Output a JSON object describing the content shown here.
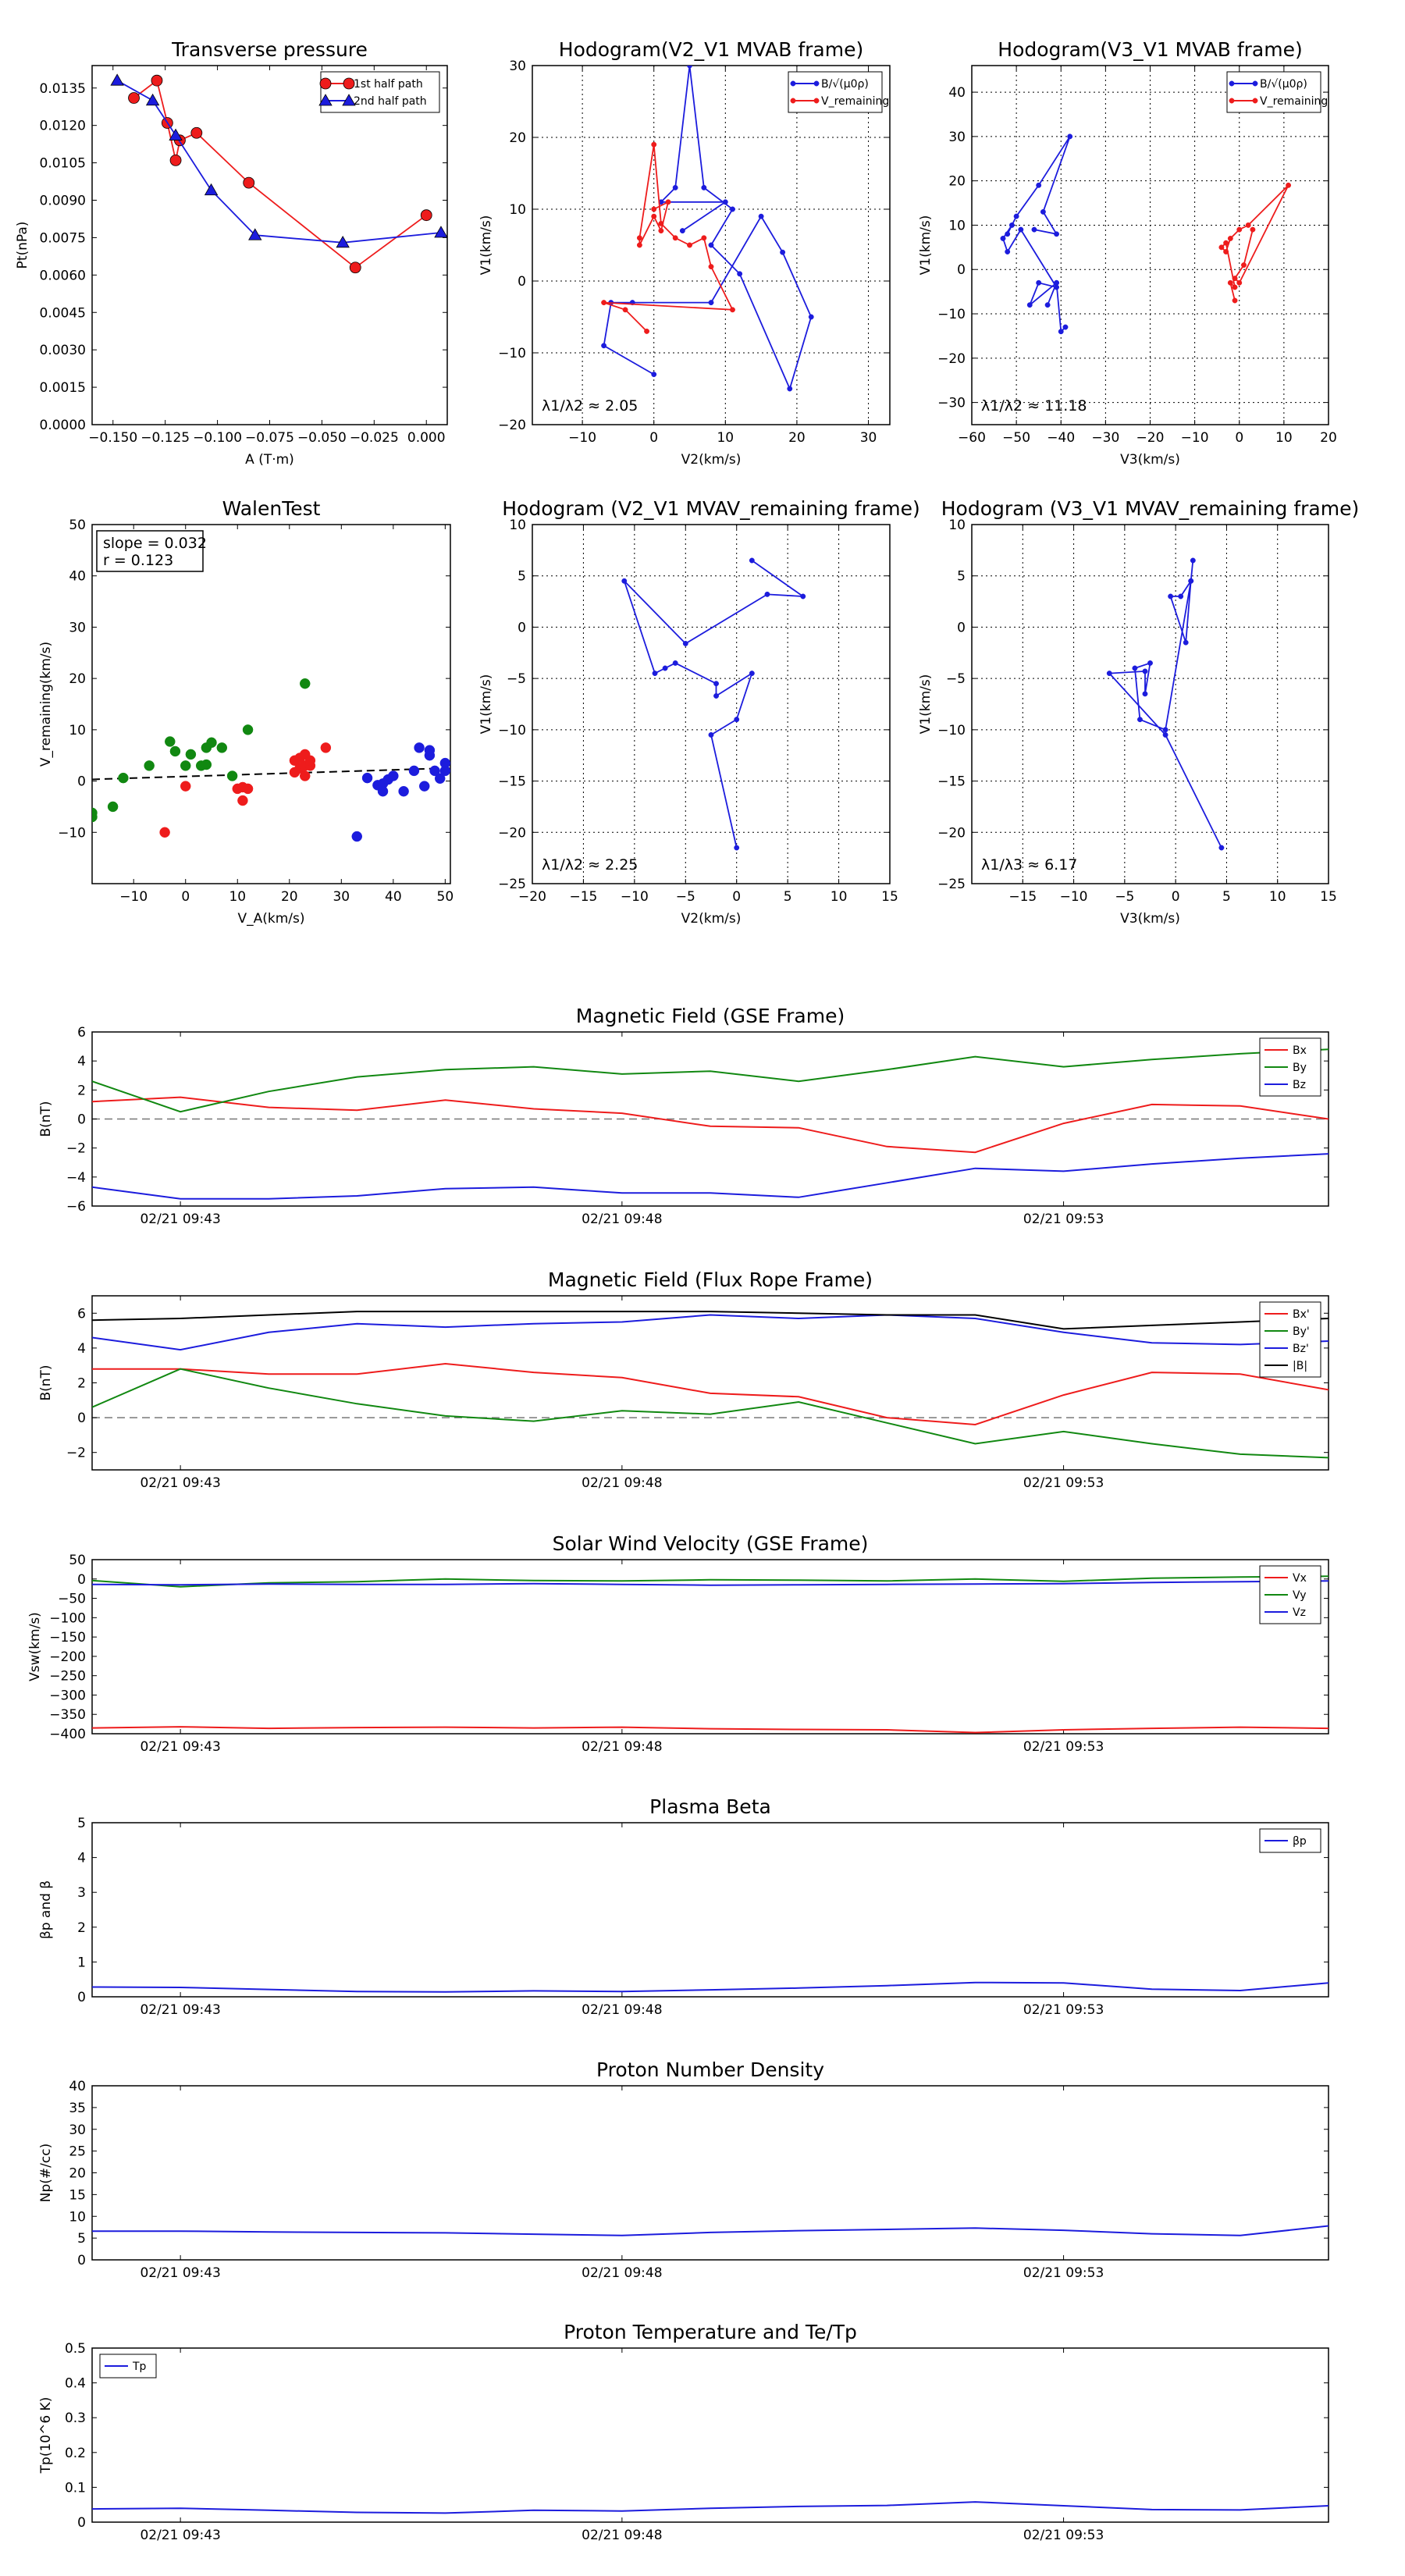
{
  "chart_data": [
    {
      "id": "tp",
      "type": "line",
      "title": "Transverse pressure",
      "xlabel": "A (T·m)",
      "ylabel": "Pt(nPa)",
      "xlim": [
        -0.16,
        0.01
      ],
      "ylim": [
        0,
        0.0144
      ],
      "grid": false,
      "legend": "top-right",
      "xticks": [
        -0.15,
        -0.125,
        -0.1,
        -0.075,
        -0.05,
        -0.025,
        0.0
      ],
      "xtick_labels": [
        "−0.150",
        "−0.125",
        "−0.100",
        "−0.075",
        "−0.050",
        "−0.025",
        "0.000"
      ],
      "yticks": [
        0.0,
        0.0015,
        0.003,
        0.0045,
        0.006,
        0.0075,
        0.009,
        0.0105,
        0.012,
        0.0135
      ],
      "ytick_labels": [
        "0.0000",
        "0.0015",
        "0.0030",
        "0.0045",
        "0.0060",
        "0.0075",
        "0.0090",
        "0.0105",
        "0.0120",
        "0.0135"
      ],
      "series": [
        {
          "name": "1st half path",
          "color": "#ee1c1c",
          "marker": "circle",
          "x": [
            0.0,
            -0.034,
            -0.085,
            -0.11,
            -0.118,
            -0.12,
            -0.124,
            -0.129,
            -0.14
          ],
          "y": [
            0.0084,
            0.0063,
            0.0097,
            0.0117,
            0.0114,
            0.0106,
            0.0121,
            0.0138,
            0.0131
          ]
        },
        {
          "name": "2nd half path",
          "color": "#1c1cdd",
          "marker": "triangle",
          "x": [
            -0.148,
            -0.131,
            -0.12,
            -0.103,
            -0.082,
            -0.04,
            0.007
          ],
          "y": [
            0.0138,
            0.013,
            0.0116,
            0.0094,
            0.0076,
            0.0073,
            0.0077
          ]
        }
      ]
    },
    {
      "id": "h1",
      "type": "line",
      "title": "Hodogram(V2_V1 MVAB frame)",
      "xlabel": "V2(km/s)",
      "ylabel": "V1(km/s)",
      "xlim": [
        -17,
        33
      ],
      "ylim": [
        -20,
        30
      ],
      "grid": true,
      "legend": "top-right",
      "xticks": [
        -10,
        0,
        10,
        20,
        30
      ],
      "yticks": [
        -20,
        -10,
        0,
        10,
        20,
        30
      ],
      "annotation": "λ1/λ2 ≈ 2.05",
      "series": [
        {
          "name": "B/√(μ0ρ)",
          "color": "#1c1cdd",
          "x": [
            0,
            -7,
            -6,
            -3,
            8,
            15,
            18,
            22,
            19,
            12,
            8,
            11,
            7,
            5,
            3,
            1,
            10,
            4
          ],
          "y": [
            -13,
            -9,
            -3,
            -3,
            -3,
            9,
            4,
            -5,
            -15,
            1,
            5,
            10,
            13,
            30,
            13,
            11,
            11,
            7
          ]
        },
        {
          "name": "V_remaining",
          "color": "#ee1c1c",
          "x": [
            -1,
            -4,
            -7,
            11,
            8,
            7,
            5,
            3,
            1,
            0,
            -2,
            -2,
            0,
            1,
            2,
            0
          ],
          "y": [
            -7,
            -4,
            -3,
            -4,
            2,
            6,
            5,
            6,
            8,
            19,
            6,
            5,
            9,
            7,
            11,
            10
          ]
        }
      ]
    },
    {
      "id": "h2",
      "type": "line",
      "title": "Hodogram(V3_V1 MVAB frame)",
      "xlabel": "V3(km/s)",
      "ylabel": "V1(km/s)",
      "xlim": [
        -60,
        20
      ],
      "ylim": [
        -35,
        46
      ],
      "grid": true,
      "legend": "top-right",
      "xticks": [
        -60,
        -50,
        -40,
        -30,
        -20,
        -10,
        0,
        10,
        20
      ],
      "yticks": [
        -30,
        -20,
        -10,
        0,
        10,
        20,
        30,
        40
      ],
      "annotation": "λ1/λ2 ≈ 11.18",
      "series": [
        {
          "name": "B/√(μ0ρ)",
          "color": "#1c1cdd",
          "x": [
            -39,
            -40,
            -41,
            -43,
            -41,
            -47,
            -45,
            -41,
            -49,
            -52,
            -53,
            -51,
            -52,
            -50,
            -45,
            -38,
            -44,
            -41,
            -46
          ],
          "y": [
            -13,
            -14,
            -3,
            -8,
            -3,
            -8,
            -3,
            -4,
            9,
            4,
            7,
            10,
            8,
            12,
            19,
            30,
            13,
            8,
            9
          ]
        },
        {
          "name": "V_remaining",
          "color": "#ee1c1c",
          "x": [
            -1,
            -2,
            -1,
            -3,
            -4,
            -3,
            -2,
            0,
            2,
            11,
            0,
            -1,
            1,
            3
          ],
          "y": [
            -7,
            -3,
            -4,
            6,
            5,
            4,
            7,
            9,
            10,
            19,
            -3,
            -2,
            1,
            9
          ]
        }
      ]
    },
    {
      "id": "walen",
      "type": "scatter",
      "title": "WalenTest",
      "xlabel": "V_A(km/s)",
      "ylabel": "V_remaining(km/s)",
      "xlim": [
        -18,
        51
      ],
      "ylim": [
        -20,
        50
      ],
      "grid": false,
      "xticks": [
        -10,
        0,
        10,
        20,
        30,
        40,
        50
      ],
      "yticks": [
        -10,
        0,
        10,
        20,
        30,
        40,
        50
      ],
      "annotation": [
        "slope = 0.032",
        "r = 0.123"
      ],
      "fit_line": {
        "slope": 0.032,
        "intercept": 0.9,
        "x": [
          -18,
          51
        ]
      },
      "series": [
        {
          "name": "green",
          "color": "#118811",
          "x": [
            -18,
            -18,
            -14,
            -12,
            -7,
            -3,
            -2,
            0,
            1,
            3,
            4,
            4,
            5,
            7,
            9,
            12,
            23
          ],
          "y": [
            -6.2,
            -7,
            -5,
            0.6,
            3,
            7.7,
            5.8,
            3,
            5.2,
            3,
            6.5,
            3.2,
            7.5,
            6.5,
            1,
            10,
            19
          ]
        },
        {
          "name": "red",
          "color": "#ee1c1c",
          "x": [
            -4,
            0,
            10,
            11,
            11,
            12,
            21,
            21,
            22,
            22,
            23,
            23,
            23,
            24,
            24,
            27
          ],
          "y": [
            -10,
            -1,
            -1.5,
            -3.8,
            -1.2,
            -1.5,
            1.7,
            4,
            2.5,
            4.5,
            1,
            3,
            5.2,
            3,
            4,
            6.5
          ]
        },
        {
          "name": "blue",
          "color": "#1c1cdd",
          "x": [
            33,
            35,
            37,
            38,
            38,
            39,
            40,
            42,
            44,
            45,
            46,
            47,
            47,
            48,
            49,
            50,
            50
          ],
          "y": [
            -10.8,
            0.6,
            -0.8,
            -0.5,
            -2,
            0.3,
            1,
            -2,
            2,
            6.5,
            -1,
            5,
            6,
            2,
            0.5,
            3.5,
            2
          ]
        }
      ]
    },
    {
      "id": "h3",
      "type": "line",
      "title": "Hodogram (V2_V1 MVAV_remaining frame)",
      "xlabel": "V2(km/s)",
      "ylabel": "V1(km/s)",
      "xlim": [
        -20,
        15
      ],
      "ylim": [
        -25,
        10
      ],
      "grid": true,
      "xticks": [
        -20,
        -15,
        -10,
        -5,
        0,
        5,
        10,
        15
      ],
      "yticks": [
        -25,
        -20,
        -15,
        -10,
        -5,
        0,
        5,
        10
      ],
      "annotation": "λ1/λ2 ≈ 2.25",
      "series": [
        {
          "name": "",
          "color": "#1c1cdd",
          "x": [
            1.5,
            6.5,
            3,
            -5,
            -11,
            -8,
            -7,
            -6,
            -2,
            -2,
            1.5,
            0,
            -2.5,
            0
          ],
          "y": [
            6.5,
            3,
            3.2,
            -1.6,
            4.5,
            -4.5,
            -4,
            -3.5,
            -5.5,
            -6.7,
            -4.5,
            -9,
            -10.5,
            -21.5
          ]
        }
      ]
    },
    {
      "id": "h4",
      "type": "line",
      "title": "Hodogram (V3_V1 MVAV_remaining frame)",
      "xlabel": "V3(km/s)",
      "ylabel": "V1(km/s)",
      "xlim": [
        -20,
        15
      ],
      "ylim": [
        -25,
        10
      ],
      "grid": true,
      "xticks": [
        -15,
        -10,
        -5,
        0,
        5,
        10,
        15
      ],
      "yticks": [
        -25,
        -20,
        -15,
        -10,
        -5,
        0,
        5,
        10
      ],
      "annotation": "λ1/λ3 ≈ 6.17",
      "series": [
        {
          "name": "",
          "color": "#1c1cdd",
          "x": [
            1.7,
            1.5,
            0.5,
            -0.5,
            1,
            1.5,
            -1,
            -3.5,
            -4,
            -2.5,
            -3,
            -3,
            -6.5,
            -1,
            4.5
          ],
          "y": [
            6.5,
            4.5,
            3,
            3,
            -1.5,
            4.5,
            -10,
            -9,
            -4,
            -3.5,
            -6.5,
            -4.3,
            -4.5,
            -10.5,
            -21.5
          ]
        }
      ]
    },
    {
      "id": "mag",
      "type": "line",
      "title": "Magnetic Field (GSE Frame)",
      "ylabel": "B(nT)",
      "ylim": [
        -6,
        6
      ],
      "yticks": [
        -6,
        -4,
        -2,
        0,
        2,
        4,
        6
      ],
      "zero_line": true,
      "legend": "top-right",
      "x": [
        0,
        1,
        2,
        3,
        4,
        5,
        6,
        7,
        8,
        9,
        10,
        11,
        12,
        13,
        14
      ],
      "xticks": [
        1,
        6,
        11
      ],
      "xtick_labels": [
        "02/21 09:43",
        "02/21 09:48",
        "02/21 09:53"
      ],
      "series": [
        {
          "name": "Bx",
          "color": "#ee1c1c",
          "values": [
            1.2,
            1.5,
            0.8,
            0.6,
            1.3,
            0.7,
            0.4,
            -0.5,
            -0.6,
            -1.9,
            -2.3,
            -0.3,
            1.0,
            0.9,
            0.0
          ]
        },
        {
          "name": "By",
          "color": "#118811",
          "values": [
            2.6,
            0.5,
            1.9,
            2.9,
            3.4,
            3.6,
            3.1,
            3.3,
            2.6,
            3.4,
            4.3,
            3.6,
            4.1,
            4.5,
            4.8
          ]
        },
        {
          "name": "Bz",
          "color": "#1c1cdd",
          "values": [
            -4.7,
            -5.5,
            -5.5,
            -5.3,
            -4.8,
            -4.7,
            -5.1,
            -5.1,
            -5.4,
            -4.4,
            -3.4,
            -3.6,
            -3.1,
            -2.7,
            -2.4
          ]
        }
      ]
    },
    {
      "id": "flux",
      "type": "line",
      "title": "Magnetic Field (Flux Rope Frame)",
      "ylabel": "B(nT)",
      "ylim": [
        -3,
        7
      ],
      "yticks": [
        -2,
        0,
        2,
        4,
        6
      ],
      "zero_line": true,
      "legend": "top-right",
      "x": [
        0,
        1,
        2,
        3,
        4,
        5,
        6,
        7,
        8,
        9,
        10,
        11,
        12,
        13,
        14
      ],
      "xticks": [
        1,
        6,
        11
      ],
      "xtick_labels": [
        "02/21 09:43",
        "02/21 09:48",
        "02/21 09:53"
      ],
      "series": [
        {
          "name": "Bx'",
          "color": "#ee1c1c",
          "values": [
            2.8,
            2.8,
            2.5,
            2.5,
            3.1,
            2.6,
            2.3,
            1.4,
            1.2,
            0.0,
            -0.4,
            1.3,
            2.6,
            2.5,
            1.6
          ]
        },
        {
          "name": "By'",
          "color": "#118811",
          "values": [
            0.6,
            2.8,
            1.7,
            0.8,
            0.1,
            -0.2,
            0.4,
            0.2,
            0.9,
            -0.3,
            -1.5,
            -0.8,
            -1.5,
            -2.1,
            -2.3
          ]
        },
        {
          "name": "Bz'",
          "color": "#1c1cdd",
          "values": [
            4.6,
            3.9,
            4.9,
            5.4,
            5.2,
            5.4,
            5.5,
            5.9,
            5.7,
            5.9,
            5.7,
            4.9,
            4.3,
            4.2,
            4.4
          ]
        },
        {
          "name": "|B|",
          "color": "#000000",
          "values": [
            5.6,
            5.7,
            5.9,
            6.1,
            6.1,
            6.1,
            6.1,
            6.1,
            6.0,
            5.9,
            5.9,
            5.1,
            5.3,
            5.5,
            5.7
          ]
        }
      ]
    },
    {
      "id": "vsw",
      "type": "line",
      "title": "Solar Wind Velocity (GSE Frame)",
      "ylabel": "Vsw(km/s)",
      "ylim": [
        -400,
        50
      ],
      "yticks": [
        -400,
        -350,
        -300,
        -250,
        -200,
        -150,
        -100,
        -50,
        0,
        50
      ],
      "legend": "top-right",
      "x": [
        0,
        1,
        2,
        3,
        4,
        5,
        6,
        7,
        8,
        9,
        10,
        11,
        12,
        13,
        14
      ],
      "xticks": [
        1,
        6,
        11
      ],
      "xtick_labels": [
        "02/21 09:43",
        "02/21 09:48",
        "02/21 09:53"
      ],
      "series": [
        {
          "name": "Vx",
          "color": "#ee1c1c",
          "values": [
            -385,
            -382,
            -386,
            -384,
            -383,
            -385,
            -383,
            -387,
            -389,
            -390,
            -397,
            -390,
            -386,
            -383,
            -386
          ]
        },
        {
          "name": "Vy",
          "color": "#118811",
          "values": [
            -4,
            -20,
            -10,
            -7,
            0,
            -4,
            -5,
            -2,
            -3,
            -5,
            0,
            -6,
            2,
            5,
            7
          ]
        },
        {
          "name": "Vz",
          "color": "#1c1cdd",
          "values": [
            -14,
            -15,
            -13,
            -14,
            -14,
            -12,
            -14,
            -16,
            -15,
            -14,
            -13,
            -12,
            -9,
            -7,
            -5
          ]
        }
      ]
    },
    {
      "id": "beta",
      "type": "line",
      "title": "Plasma Beta",
      "ylabel": "βp and β",
      "ylim": [
        0,
        5
      ],
      "yticks": [
        0,
        1,
        2,
        3,
        4,
        5
      ],
      "legend": "top-right",
      "x": [
        0,
        1,
        2,
        3,
        4,
        5,
        6,
        7,
        8,
        9,
        10,
        11,
        12,
        13,
        14
      ],
      "xticks": [
        1,
        6,
        11
      ],
      "xtick_labels": [
        "02/21 09:43",
        "02/21 09:48",
        "02/21 09:53"
      ],
      "series": [
        {
          "name": "βp",
          "color": "#1c1cdd",
          "values": [
            0.28,
            0.27,
            0.21,
            0.15,
            0.14,
            0.17,
            0.15,
            0.2,
            0.25,
            0.32,
            0.41,
            0.4,
            0.22,
            0.18,
            0.4
          ]
        }
      ]
    },
    {
      "id": "np",
      "type": "line",
      "title": "Proton Number Density",
      "ylabel": "Np(#/cc)",
      "ylim": [
        0,
        40
      ],
      "yticks": [
        0,
        5,
        10,
        15,
        20,
        25,
        30,
        35,
        40
      ],
      "x": [
        0,
        1,
        2,
        3,
        4,
        5,
        6,
        7,
        8,
        9,
        10,
        11,
        12,
        13,
        14
      ],
      "xticks": [
        1,
        6,
        11
      ],
      "xtick_labels": [
        "02/21 09:43",
        "02/21 09:48",
        "02/21 09:53"
      ],
      "series": [
        {
          "name": "",
          "color": "#1c1cdd",
          "values": [
            6.6,
            6.6,
            6.4,
            6.3,
            6.2,
            5.9,
            5.6,
            6.3,
            6.7,
            7.0,
            7.3,
            6.8,
            6.0,
            5.6,
            7.8
          ]
        }
      ]
    },
    {
      "id": "tp2",
      "type": "line",
      "title": "Proton Temperature and Te/Tp",
      "ylabel": "Tp(10^6 K)",
      "ylim": [
        0,
        0.5
      ],
      "yticks": [
        0,
        0.1,
        0.2,
        0.3,
        0.4,
        0.5
      ],
      "legend": "top-left",
      "x": [
        0,
        1,
        2,
        3,
        4,
        5,
        6,
        7,
        8,
        9,
        10,
        11,
        12,
        13,
        14
      ],
      "xticks": [
        1,
        6,
        11
      ],
      "xtick_labels": [
        "02/21 09:43",
        "02/21 09:48",
        "02/21 09:53"
      ],
      "series": [
        {
          "name": "Tp",
          "color": "#1c1cdd",
          "values": [
            0.038,
            0.04,
            0.034,
            0.028,
            0.026,
            0.034,
            0.032,
            0.04,
            0.045,
            0.048,
            0.058,
            0.047,
            0.036,
            0.035,
            0.047
          ]
        }
      ]
    }
  ]
}
